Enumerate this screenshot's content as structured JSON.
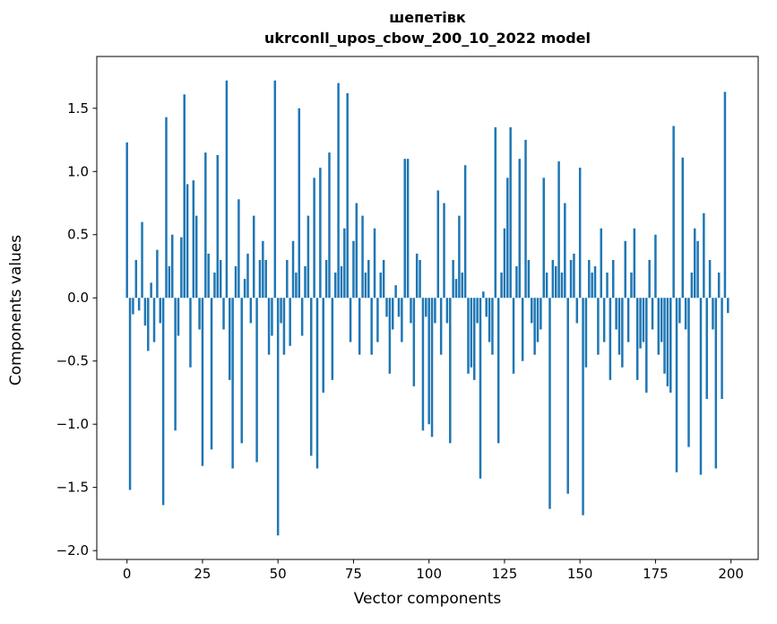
{
  "chart_data": {
    "type": "bar",
    "title": "шепетівк",
    "subtitle": "ukrconll_upos_cbow_200_10_2022 model",
    "xlabel": "Vector components",
    "ylabel": "Components values",
    "xlim": [
      -10,
      209
    ],
    "ylim": [
      -2.07,
      1.91
    ],
    "xticks": [
      0,
      25,
      50,
      75,
      100,
      125,
      150,
      175,
      200
    ],
    "yticks": [
      -2.0,
      -1.5,
      -1.0,
      -0.5,
      0.0,
      0.5,
      1.0,
      1.5
    ],
    "bar_color": "#1f77b4",
    "grid": false,
    "legend": "none",
    "x_start": 0,
    "values": [
      1.23,
      -1.52,
      -0.13,
      0.3,
      -0.1,
      0.6,
      -0.22,
      -0.42,
      0.12,
      -0.35,
      0.38,
      -0.2,
      -1.64,
      1.43,
      0.25,
      0.5,
      -1.05,
      -0.3,
      0.48,
      1.61,
      0.9,
      -0.55,
      0.93,
      0.65,
      -0.25,
      -1.33,
      1.15,
      0.35,
      -1.2,
      0.2,
      1.13,
      0.3,
      -0.25,
      1.72,
      -0.65,
      -1.35,
      0.25,
      0.78,
      -1.15,
      0.15,
      0.35,
      -0.2,
      0.65,
      -1.3,
      0.3,
      0.45,
      0.3,
      -0.45,
      -0.3,
      1.72,
      -1.88,
      -0.2,
      -0.45,
      0.3,
      -0.38,
      0.45,
      0.2,
      1.5,
      -0.3,
      0.25,
      0.65,
      -1.25,
      0.95,
      -1.35,
      1.03,
      -0.75,
      0.3,
      1.15,
      -0.65,
      0.2,
      1.7,
      0.25,
      0.55,
      1.62,
      -0.35,
      0.45,
      0.75,
      -0.45,
      0.65,
      0.2,
      0.3,
      -0.45,
      0.55,
      -0.35,
      0.2,
      0.3,
      -0.15,
      -0.6,
      -0.25,
      0.1,
      -0.15,
      -0.35,
      1.1,
      1.1,
      -0.2,
      -0.7,
      0.35,
      0.3,
      -1.05,
      -0.15,
      -1.0,
      -1.1,
      -0.2,
      0.85,
      -0.45,
      0.75,
      -0.2,
      -1.15,
      0.3,
      0.15,
      0.65,
      0.2,
      1.05,
      -0.6,
      -0.55,
      -0.65,
      -0.2,
      -1.43,
      0.05,
      -0.15,
      -0.35,
      -0.45,
      1.35,
      -1.15,
      0.2,
      0.55,
      0.95,
      1.35,
      -0.6,
      0.25,
      1.1,
      -0.5,
      1.25,
      0.3,
      -0.2,
      -0.45,
      -0.35,
      -0.25,
      0.95,
      0.2,
      -1.67,
      0.3,
      0.25,
      1.08,
      0.2,
      0.75,
      -1.55,
      0.3,
      0.35,
      -0.2,
      1.03,
      -1.72,
      -0.55,
      0.3,
      0.2,
      0.25,
      -0.45,
      0.55,
      -0.35,
      0.2,
      -0.65,
      0.3,
      -0.25,
      -0.45,
      -0.55,
      0.45,
      -0.35,
      0.2,
      0.55,
      -0.65,
      -0.4,
      -0.35,
      -0.75,
      0.3,
      -0.25,
      0.5,
      -0.45,
      -0.35,
      -0.6,
      -0.7,
      -0.75,
      1.36,
      -1.38,
      -0.2,
      1.11,
      -0.25,
      -1.18,
      0.2,
      0.55,
      0.45,
      -1.4,
      0.67,
      -0.8,
      0.3,
      -0.25,
      -1.35,
      0.2,
      -0.8,
      1.63,
      -0.12
    ]
  }
}
